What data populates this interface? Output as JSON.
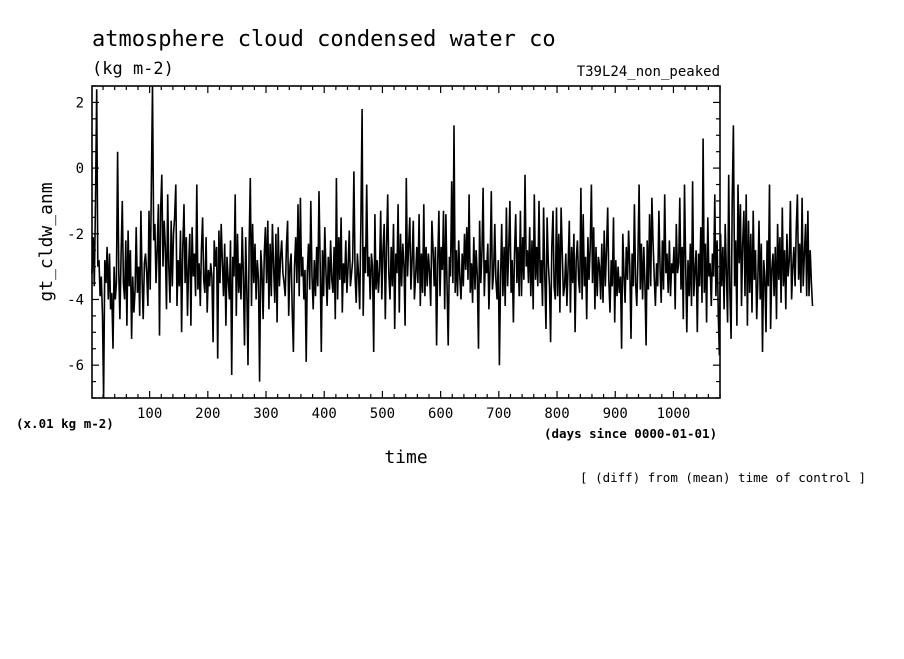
{
  "chart_data": {
    "type": "line",
    "title": "atmosphere cloud condensed water co",
    "units": "(kg m-2)",
    "experiment": "T39L24_non_peaked",
    "ylabel": "gt_cldw_anm",
    "y_unit_note": "(x.01 kg m-2)",
    "xlabel": "time",
    "x_unit_note": "(days since 0000-01-01)",
    "footnote": "[ (diff) from (mean) time of control ]",
    "xlim": [
      1,
      1080
    ],
    "ylim": [
      -7,
      2.5
    ],
    "x_ticks": [
      100,
      200,
      300,
      400,
      500,
      600,
      700,
      800,
      900,
      1000
    ],
    "x_tick_labels": [
      "100",
      "200",
      "300",
      "400",
      "500",
      "600",
      "700",
      "800",
      "900",
      "1000"
    ],
    "y_ticks": [
      -6,
      -4,
      -2,
      0,
      2
    ],
    "y_tick_labels": [
      "-6",
      "-4",
      "-2",
      "0",
      "2"
    ],
    "series": [
      {
        "color": "#000000",
        "x_start": 1,
        "x_step": 2,
        "values": [
          -3.2,
          -2.1,
          -3.6,
          -1.0,
          2.4,
          -3.0,
          -2.8,
          -3.9,
          -3.3,
          -4.5,
          -7.0,
          -2.8,
          -3.5,
          -2.4,
          -4.0,
          -2.6,
          -4.3,
          -3.8,
          -5.5,
          -3.0,
          -4.0,
          -3.5,
          0.5,
          -3.2,
          -4.6,
          -2.6,
          -1.0,
          -3.5,
          -4.0,
          -2.2,
          -4.8,
          -1.9,
          -3.6,
          -2.5,
          -5.2,
          -3.3,
          -4.4,
          -3.7,
          -1.8,
          -3.8,
          -3.0,
          -4.5,
          -1.3,
          -3.4,
          -4.6,
          -2.9,
          -2.6,
          -3.2,
          -4.2,
          -1.3,
          -3.7,
          -0.4,
          2.5,
          -2.2,
          -1.7,
          -3.5,
          -2.5,
          -1.1,
          -5.1,
          -1.2,
          -0.2,
          -3.0,
          -1.6,
          -2.4,
          -4.3,
          -0.8,
          -3.0,
          -4.1,
          -1.6,
          -3.6,
          -2.0,
          -1.5,
          -0.5,
          -4.2,
          -2.8,
          -3.6,
          -1.9,
          -5.0,
          -2.4,
          -1.1,
          -3.5,
          -2.1,
          -4.5,
          -3.0,
          -2.0,
          -4.8,
          -1.8,
          -3.3,
          -2.6,
          -3.9,
          -0.5,
          -3.7,
          -2.9,
          -4.2,
          -2.5,
          -1.5,
          -3.4,
          -3.8,
          -2.1,
          -4.4,
          -3.1,
          -3.6,
          -2.9,
          -3.3,
          -5.3,
          -2.2,
          -3.0,
          -2.4,
          -5.8,
          -1.9,
          -3.5,
          -1.7,
          -2.9,
          -3.9,
          -2.3,
          -4.8,
          -2.7,
          -3.4,
          -4.0,
          -2.2,
          -6.3,
          -2.7,
          -3.3,
          -0.8,
          -4.5,
          -2.0,
          -3.8,
          -2.9,
          -4.0,
          -1.8,
          -3.2,
          -5.4,
          -2.1,
          -3.7,
          -6.0,
          -2.4,
          -0.3,
          -4.2,
          -1.7,
          -3.5,
          -2.3,
          -4.0,
          -2.8,
          -3.4,
          -6.5,
          -2.5,
          -3.1,
          -4.6,
          -2.6,
          -1.8,
          -3.5,
          -1.6,
          -4.3,
          -2.3,
          -3.9,
          -1.7,
          -3.0,
          -4.1,
          -2.0,
          -4.7,
          -1.8,
          -3.6,
          -2.7,
          -2.2,
          -3.2,
          -3.5,
          -3.9,
          -2.4,
          -1.6,
          -4.5,
          -3.0,
          -2.6,
          -4.3,
          -5.6,
          -3.0,
          -2.1,
          -3.5,
          -1.1,
          -3.9,
          -0.9,
          -3.3,
          -2.7,
          -4.0,
          -3.1,
          -5.9,
          -3.2,
          -2.3,
          -3.7,
          -1.0,
          -3.3,
          -4.3,
          -2.8,
          -3.9,
          -2.4,
          -3.6,
          -0.7,
          -3.0,
          -5.6,
          -2.5,
          -3.9,
          -1.8,
          -3.2,
          -4.2,
          -2.7,
          -3.7,
          -2.2,
          -3.4,
          -3.8,
          -2.4,
          -4.6,
          -0.3,
          -4.0,
          -2.1,
          -3.4,
          -1.5,
          -4.4,
          -2.9,
          -3.5,
          -2.2,
          -3.8,
          -3.0,
          -1.9,
          -3.6,
          -3.2,
          -2.8,
          -0.1,
          -3.3,
          -4.1,
          -2.6,
          -3.3,
          -4.3,
          -1.6,
          1.8,
          -4.5,
          -2.4,
          -3.2,
          -0.5,
          -3.3,
          -2.7,
          -4.0,
          -2.6,
          -3.0,
          -5.6,
          -1.4,
          -3.7,
          -2.8,
          -3.8,
          -3.1,
          -1.3,
          -4.0,
          -2.5,
          -1.7,
          -4.6,
          -2.4,
          -0.8,
          -3.2,
          -4.0,
          -2.4,
          -3.6,
          -1.7,
          -4.9,
          -2.6,
          -3.2,
          -1.1,
          -4.4,
          -2.0,
          -3.6,
          -2.3,
          -3.0,
          -4.8,
          -0.3,
          -3.3,
          -2.4,
          -1.5,
          -3.7,
          -2.8,
          -1.6,
          -4.0,
          -3.3,
          -2.4,
          -3.5,
          -1.4,
          -4.2,
          -2.6,
          -3.8,
          -1.1,
          -3.9,
          -2.4,
          -3.6,
          -2.6,
          -3.2,
          -4.2,
          -1.6,
          -2.5,
          -3.6,
          -2.4,
          -5.4,
          -2.9,
          -1.3,
          -3.9,
          -2.4,
          -3.1,
          -1.3,
          -4.3,
          -1.4,
          -3.5,
          -5.4,
          -2.7,
          -3.3,
          -0.4,
          -3.5,
          1.3,
          -3.8,
          -2.5,
          -3.9,
          -2.2,
          -3.3,
          -4.0,
          -2.6,
          -3.6,
          -2.0,
          -3.1,
          -1.8,
          -3.4,
          -0.8,
          -3.8,
          -2.9,
          -4.1,
          -2.1,
          -3.7,
          -2.5,
          -3.3,
          -5.5,
          -1.6,
          -3.5,
          -2.5,
          -0.6,
          -3.9,
          -2.8,
          -3.2,
          -2.3,
          -4.3,
          -3.0,
          -0.7,
          -3.7,
          -3.2,
          -1.7,
          -3.4,
          -4.0,
          -2.8,
          -6.0,
          -3.3,
          -1.7,
          -3.9,
          -2.4,
          -4.2,
          -1.2,
          -3.6,
          -2.5,
          -1.0,
          -3.8,
          -2.8,
          -4.7,
          -2.6,
          -1.4,
          -3.5,
          -2.4,
          -3.9,
          -1.3,
          -3.9,
          -2.1,
          -3.4,
          -0.2,
          -3.0,
          -2.5,
          -3.5,
          -1.8,
          -3.9,
          -2.2,
          -4.3,
          -0.8,
          -3.4,
          -2.4,
          -3.6,
          -1.0,
          -3.5,
          -2.8,
          -4.2,
          -1.2,
          -3.3,
          -4.9,
          -1.5,
          -2.9,
          -3.6,
          -5.3,
          -2.4,
          -1.3,
          -3.6,
          -4.0,
          -1.2,
          -3.9,
          -2.0,
          -4.4,
          -1.2,
          -2.6,
          -3.9,
          -3.6,
          -2.6,
          -4.2,
          -3.0,
          -1.6,
          -4.4,
          -2.4,
          -3.5,
          -2.0,
          -5.0,
          -2.8,
          -2.2,
          -3.4,
          -3.8,
          -0.6,
          -4.0,
          -1.4,
          -3.6,
          -2.7,
          -4.6,
          -2.1,
          -3.4,
          -2.4,
          -0.5,
          -3.5,
          -1.8,
          -4.3,
          -2.4,
          -3.9,
          -2.7,
          -3.0,
          -4.0,
          -2.3,
          -4.1,
          -1.9,
          -3.6,
          -2.5,
          -1.2,
          -3.4,
          -4.4,
          -2.8,
          -3.6,
          -1.5,
          -4.7,
          -2.8,
          -3.9,
          -3.0,
          -3.8,
          -3.3,
          -5.5,
          -2.0,
          -3.3,
          -4.1,
          -2.4,
          -3.4,
          -1.9,
          -3.0,
          -5.2,
          -2.6,
          -3.6,
          -1.1,
          -3.5,
          -4.2,
          -2.8,
          -0.5,
          -3.7,
          -2.3,
          -4.0,
          -2.4,
          -3.5,
          -5.4,
          -2.2,
          -3.7,
          -1.4,
          -3.6,
          -0.9,
          -2.3,
          -3.3,
          -4.2,
          -2.9,
          -3.6,
          -1.3,
          -3.1,
          -4.1,
          -2.2,
          -3.7,
          -0.8,
          -3.2,
          -2.6,
          -3.8,
          -2.2,
          -3.9,
          -2.9,
          -3.2,
          -2.4,
          -4.3,
          -1.7,
          -3.2,
          -2.9,
          -0.9,
          -3.7,
          -2.4,
          -4.6,
          -0.5,
          -3.0,
          -5.0,
          -2.8,
          -3.9,
          -2.3,
          -4.2,
          -0.4,
          -3.9,
          -3.1,
          -2.5,
          -5.0,
          -2.6,
          -3.6,
          -1.8,
          -4.1,
          0.9,
          -3.8,
          -2.3,
          -4.7,
          -1.5,
          -3.3,
          -2.9,
          -4.2,
          -2.6,
          -3.3,
          -0.8,
          -3.9,
          -2.2,
          -4.5,
          -5.7,
          -2.0,
          -3.6,
          -2.4,
          -4.3,
          -1.7,
          -3.2,
          -4.7,
          -0.2,
          -3.8,
          -5.2,
          -1.0,
          1.3,
          -3.6,
          -2.2,
          -4.8,
          -0.5,
          -2.9,
          -1.1,
          -4.2,
          -2.3,
          -1.3,
          -3.9,
          -0.8,
          -4.8,
          -1.6,
          -3.8,
          -2.0,
          -4.4,
          -1.3,
          -3.4,
          -2.5,
          -4.6,
          -3.5,
          -1.6,
          -4.0,
          -2.3,
          -5.6,
          -2.8,
          -3.3,
          -5.0,
          -2.2,
          -3.6,
          -0.5,
          -4.9,
          -3.1,
          -2.6,
          -3.9,
          -2.4,
          -4.6,
          -1.7,
          -3.4,
          -2.1,
          -4.1,
          -1.2,
          -3.6,
          -2.5,
          -4.3,
          -2.0,
          -3.3,
          -2.8,
          -1.0,
          -4.0,
          -3.0,
          -2.4,
          -3.6,
          -1.9,
          -0.8,
          -3.4,
          -2.3,
          -3.8,
          -0.9,
          -3.6,
          -2.6,
          -1.7,
          -3.9,
          -1.3,
          -3.9,
          -2.5,
          -3.5,
          -4.2
        ]
      }
    ]
  }
}
